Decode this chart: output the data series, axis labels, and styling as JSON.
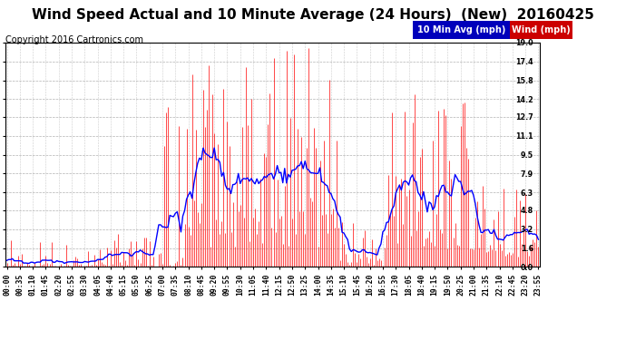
{
  "title": "Wind Speed Actual and 10 Minute Average (24 Hours)  (New)  20160425",
  "copyright": "Copyright 2016 Cartronics.com",
  "legend_10min_label": "10 Min Avg (mph)",
  "legend_wind_label": "Wind (mph)",
  "legend_10min_color": "#0000BB",
  "legend_wind_color": "#CC0000",
  "line_color_wind": "#FF0000",
  "line_color_avg": "#0000FF",
  "bg_color": "#FFFFFF",
  "grid_color": "#AAAAAA",
  "yticks": [
    0.0,
    1.6,
    3.2,
    4.8,
    6.3,
    7.9,
    9.5,
    11.1,
    12.7,
    14.2,
    15.8,
    17.4,
    19.0
  ],
  "ymin": 0.0,
  "ymax": 19.0,
  "title_fontsize": 11,
  "copyright_fontsize": 7,
  "tick_fontsize": 5.8,
  "legend_fontsize": 7,
  "xtick_step": 7
}
